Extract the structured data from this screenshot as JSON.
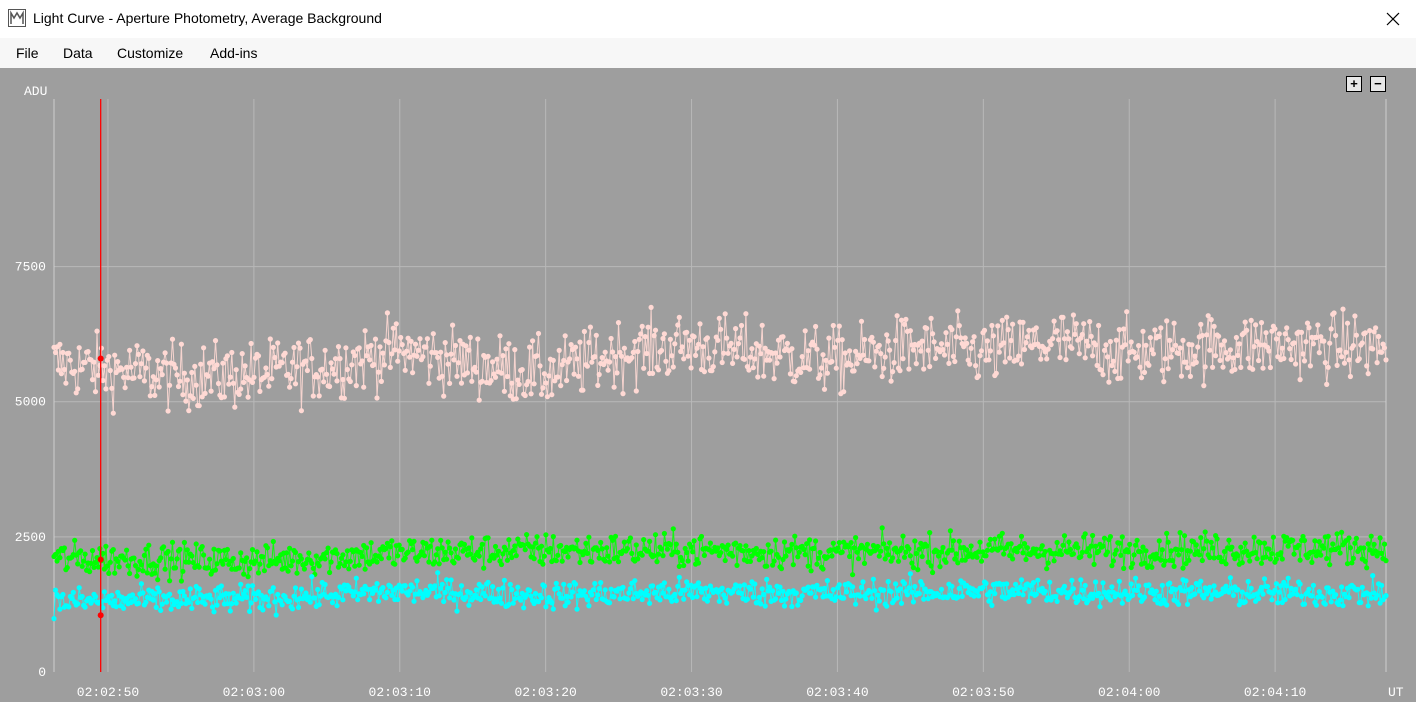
{
  "window": {
    "title": "Light Curve - Aperture Photometry, Average Background"
  },
  "menu": {
    "items": [
      "File",
      "Data",
      "Customize",
      "Add-ins"
    ]
  },
  "zoom": {
    "in_label": "+",
    "out_label": "−"
  },
  "chart_data": {
    "type": "scatter",
    "ylabel": "ADU",
    "xlabel": "UT",
    "ylim": [
      0,
      10600
    ],
    "yticks": [
      0,
      2500,
      5000,
      7500
    ],
    "ytick_labels": [
      "0",
      "2500",
      "5000",
      "7500"
    ],
    "xtick_labels": [
      "02:02:50",
      "02:03:00",
      "02:03:10",
      "02:03:20",
      "02:03:30",
      "02:03:40",
      "02:03:50",
      "02:04:00",
      "02:04:10"
    ],
    "xlim_seconds": [
      166.3,
      257.6
    ],
    "xticks_seconds": [
      170,
      180,
      190,
      200,
      210,
      220,
      230,
      240,
      250
    ],
    "cursor_time": "02:02:49.5",
    "grid": true,
    "series": [
      {
        "color": "#ffd9d4",
        "mean_trend": [
          [
            166.3,
            5700
          ],
          [
            175,
            5450
          ],
          [
            180,
            5500
          ],
          [
            185,
            5650
          ],
          [
            190,
            5950
          ],
          [
            195,
            5700
          ],
          [
            200,
            5500
          ],
          [
            205,
            5900
          ],
          [
            210,
            6050
          ],
          [
            215,
            5900
          ],
          [
            220,
            5750
          ],
          [
            225,
            6000
          ],
          [
            230,
            5900
          ],
          [
            235,
            6100
          ],
          [
            240,
            5900
          ],
          [
            245,
            6000
          ],
          [
            250,
            6050
          ],
          [
            257.6,
            6000
          ]
        ],
        "spread": 550,
        "cursor_value": 5800
      },
      {
        "color": "#00ff00",
        "mean_trend": [
          [
            166.3,
            2100
          ],
          [
            180,
            2050
          ],
          [
            190,
            2200
          ],
          [
            200,
            2250
          ],
          [
            210,
            2250
          ],
          [
            220,
            2200
          ],
          [
            230,
            2250
          ],
          [
            240,
            2250
          ],
          [
            257.6,
            2300
          ]
        ],
        "spread": 280,
        "cursor_value": 2080
      },
      {
        "color": "#00ffff",
        "mean_trend": [
          [
            166.3,
            1300
          ],
          [
            180,
            1350
          ],
          [
            190,
            1500
          ],
          [
            200,
            1420
          ],
          [
            210,
            1480
          ],
          [
            220,
            1450
          ],
          [
            230,
            1500
          ],
          [
            240,
            1480
          ],
          [
            257.6,
            1450
          ]
        ],
        "spread": 230,
        "cursor_value": 1050
      }
    ]
  }
}
